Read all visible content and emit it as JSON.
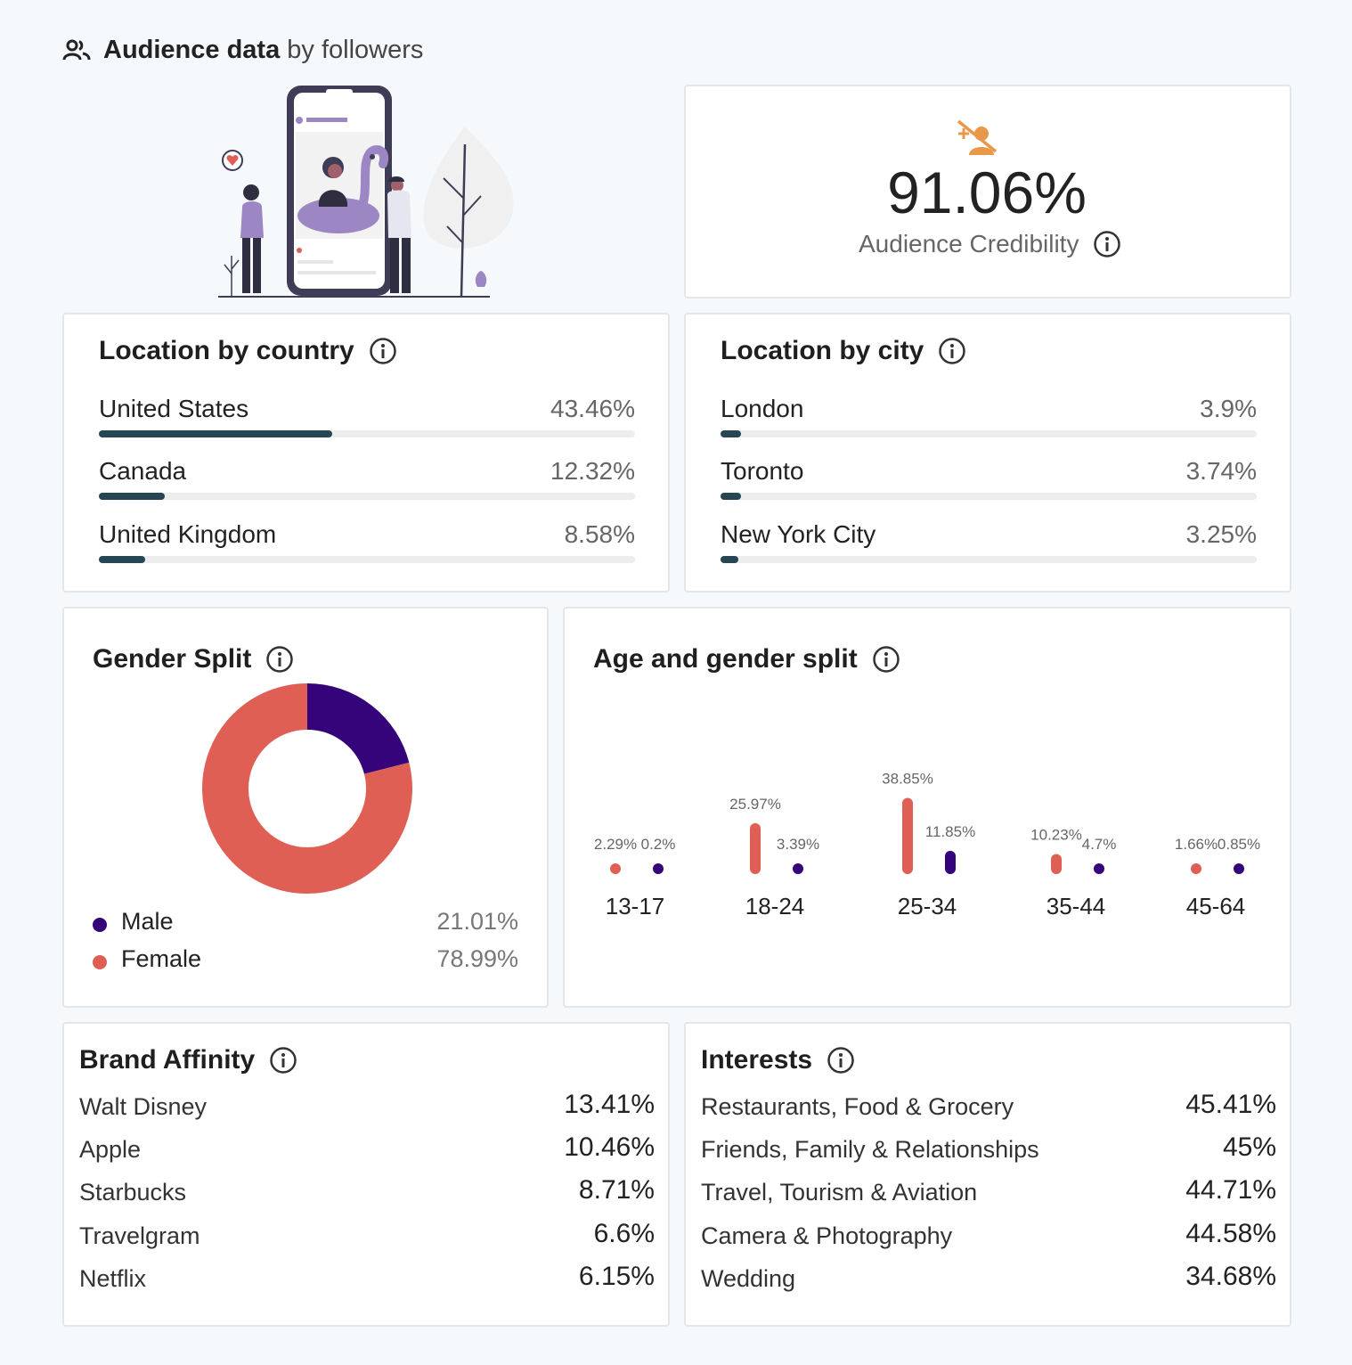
{
  "header": {
    "title_bold": "Audience data",
    "title_rest": "by followers",
    "icon": "people-icon"
  },
  "credibility": {
    "value": "91.06%",
    "label": "Audience Credibility",
    "icon": "fake-followers-icon",
    "icon_color": "#e9974a"
  },
  "location_country": {
    "title": "Location by country",
    "rows": [
      {
        "name": "United States",
        "pct": "43.46%",
        "share": 0.4346
      },
      {
        "name": "Canada",
        "pct": "12.32%",
        "share": 0.1232
      },
      {
        "name": "United Kingdom",
        "pct": "8.58%",
        "share": 0.0858
      }
    ]
  },
  "location_city": {
    "title": "Location by city",
    "rows": [
      {
        "name": "London",
        "pct": "3.9%",
        "share": 0.039
      },
      {
        "name": "Toronto",
        "pct": "3.74%",
        "share": 0.0374
      },
      {
        "name": "New York City",
        "pct": "3.25%",
        "share": 0.0325
      }
    ]
  },
  "gender_split": {
    "title": "Gender Split",
    "legend": [
      {
        "name": "Male",
        "pct": "21.01%",
        "color": "#35047a"
      },
      {
        "name": "Female",
        "pct": "78.99%",
        "color": "#e05f55"
      }
    ]
  },
  "age_gender": {
    "title": "Age and gender split"
  },
  "chart_data": [
    {
      "type": "pie",
      "labels": [
        "Male",
        "Female"
      ],
      "values": [
        21.01,
        78.99
      ],
      "colors": [
        "#35047a",
        "#e05f55"
      ]
    },
    {
      "type": "bar",
      "categories": [
        "13-17",
        "18-24",
        "25-34",
        "35-44",
        "45-64"
      ],
      "series": [
        {
          "values": [
            2.29,
            25.97,
            38.85,
            10.23,
            1.66
          ],
          "labels": [
            "2.29%",
            "25.97%",
            "38.85%",
            "10.23%",
            "1.66%"
          ],
          "color": "#e05f55"
        },
        {
          "values": [
            0.2,
            3.39,
            11.85,
            4.7,
            0.85
          ],
          "labels": [
            "0.2%",
            "3.39%",
            "11.85%",
            "4.7%",
            "0.85%"
          ],
          "color": "#35047a"
        }
      ]
    }
  ],
  "brand_affinity": {
    "title": "Brand Affinity",
    "rows": [
      {
        "name": "Walt Disney",
        "pct": "13.41%"
      },
      {
        "name": "Apple",
        "pct": "10.46%"
      },
      {
        "name": "Starbucks",
        "pct": "8.71%"
      },
      {
        "name": "Travelgram",
        "pct": "6.6%"
      },
      {
        "name": "Netflix",
        "pct": "6.15%"
      }
    ]
  },
  "interests": {
    "title": "Interests",
    "rows": [
      {
        "name": "Restaurants, Food & Grocery",
        "pct": "45.41%"
      },
      {
        "name": "Friends, Family & Relationships",
        "pct": "45%"
      },
      {
        "name": "Travel, Tourism & Aviation",
        "pct": "44.71%"
      },
      {
        "name": "Camera & Photography",
        "pct": "44.58%"
      },
      {
        "name": "Wedding",
        "pct": "34.68%"
      }
    ]
  }
}
